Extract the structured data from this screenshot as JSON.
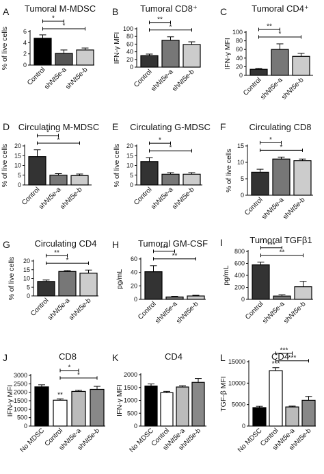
{
  "chart_data": [
    {
      "panel": "A",
      "type": "bar",
      "title": "Tumoral M-MDSC",
      "ylabel": "% of live cells",
      "ylim": [
        0,
        6
      ],
      "yticks": [
        0,
        2,
        4,
        6
      ],
      "categories": [
        "Control",
        "shNt5e-a",
        "shNt5e-b"
      ],
      "values": [
        4.8,
        2.1,
        2.7
      ],
      "errors": [
        0.6,
        0.6,
        0.35
      ],
      "colors": [
        "#000000",
        "#555555",
        "#cccccc"
      ],
      "significance": [
        {
          "from": 0,
          "to": 1,
          "label": "*"
        },
        {
          "from": 0,
          "to": 2,
          "label": "*"
        }
      ]
    },
    {
      "panel": "B",
      "type": "bar",
      "title": "Tumoral CD8⁺",
      "ylabel": "IFN-γ MFI",
      "ylim": [
        0,
        100
      ],
      "yticks": [
        0,
        20,
        40,
        60,
        80,
        100
      ],
      "categories": [
        "Control",
        "shNt5e-a",
        "shNt5e-b"
      ],
      "values": [
        30,
        70,
        59
      ],
      "errors": [
        4,
        9,
        7
      ],
      "colors": [
        "#333333",
        "#777777",
        "#cccccc"
      ],
      "significance": [
        {
          "from": 0,
          "to": 1,
          "label": "**"
        },
        {
          "from": 0,
          "to": 2,
          "label": "*"
        }
      ]
    },
    {
      "panel": "C",
      "type": "bar",
      "title": "Tumoral CD4⁺",
      "ylabel": "IFN-γ MFI",
      "ylim": [
        0,
        100
      ],
      "yticks": [
        0,
        20,
        40,
        60,
        80,
        100
      ],
      "categories": [
        "Control",
        "shNt5e-a",
        "shNt5e-b"
      ],
      "values": [
        14,
        60,
        44
      ],
      "errors": [
        2,
        13,
        7
      ],
      "colors": [
        "#333333",
        "#777777",
        "#cccccc"
      ],
      "significance": [
        {
          "from": 0,
          "to": 1,
          "label": "**"
        },
        {
          "from": 0,
          "to": 2,
          "label": "*"
        }
      ]
    },
    {
      "panel": "D",
      "type": "bar",
      "title": "Circulating M-MDSC",
      "ylabel": "% of live cells",
      "ylim": [
        0,
        20
      ],
      "yticks": [
        0,
        5,
        10,
        15,
        20
      ],
      "categories": [
        "Control",
        "shNt5e-a",
        "shNt5e-b"
      ],
      "values": [
        14.5,
        5,
        4.8
      ],
      "errors": [
        3.5,
        0.8,
        0.8
      ],
      "colors": [
        "#333333",
        "#777777",
        "#cccccc"
      ],
      "significance": [
        {
          "from": 0,
          "to": 1,
          "label": "*"
        },
        {
          "from": 0,
          "to": 2,
          "label": "*"
        }
      ]
    },
    {
      "panel": "E",
      "type": "bar",
      "title": "Circulating G-MDSC",
      "ylabel": "% of live cells",
      "ylim": [
        0,
        20
      ],
      "yticks": [
        0,
        5,
        10,
        15,
        20
      ],
      "categories": [
        "Control",
        "shNt5e-a",
        "shNt5e-b"
      ],
      "values": [
        12,
        5.5,
        5.5
      ],
      "errors": [
        2,
        0.8,
        0.8
      ],
      "colors": [
        "#333333",
        "#777777",
        "#cccccc"
      ],
      "significance": [
        {
          "from": 0,
          "to": 1,
          "label": "*"
        },
        {
          "from": 0,
          "to": 2,
          "label": "*"
        }
      ]
    },
    {
      "panel": "F",
      "type": "bar",
      "title": "Circulating CD8",
      "ylabel": "% of live cells",
      "ylim": [
        0,
        15
      ],
      "yticks": [
        0,
        5,
        10,
        15
      ],
      "categories": [
        "Control",
        "shNt5e-a",
        "shNt5e-b"
      ],
      "values": [
        7,
        11,
        10.5
      ],
      "errors": [
        0.9,
        0.6,
        0.5
      ],
      "colors": [
        "#333333",
        "#777777",
        "#cccccc"
      ],
      "significance": [
        {
          "from": 0,
          "to": 1,
          "label": "*"
        },
        {
          "from": 0,
          "to": 2,
          "label": "*"
        }
      ]
    },
    {
      "panel": "G",
      "type": "bar",
      "title": "Circulating CD4",
      "ylabel": "% of live cells",
      "ylim": [
        0,
        20
      ],
      "yticks": [
        0,
        5,
        10,
        15,
        20
      ],
      "categories": [
        "Control",
        "shNt5e-a",
        "shNt5e-b"
      ],
      "values": [
        8.3,
        14,
        13
      ],
      "errors": [
        0.8,
        0.5,
        1.8
      ],
      "colors": [
        "#333333",
        "#777777",
        "#cccccc"
      ],
      "significance": [
        {
          "from": 0,
          "to": 1,
          "label": "**"
        },
        {
          "from": 0,
          "to": 2,
          "label": "*"
        }
      ]
    },
    {
      "panel": "H",
      "type": "bar",
      "title": "Tumoral GM-CSF",
      "ylabel": "pg/mL",
      "ylim": [
        0,
        60
      ],
      "yticks": [
        0,
        20,
        40,
        60
      ],
      "categories": [
        "Control",
        "shNt5e-a",
        "shNt5e-b"
      ],
      "values": [
        41,
        3.5,
        5
      ],
      "errors": [
        9,
        1,
        1
      ],
      "colors": [
        "#333333",
        "#777777",
        "#cccccc"
      ],
      "significance": [
        {
          "from": 0,
          "to": 1,
          "label": "***"
        },
        {
          "from": 0,
          "to": 2,
          "label": "**"
        }
      ]
    },
    {
      "panel": "I",
      "type": "bar",
      "title": "Tumoral TGFβ1",
      "ylabel": "pg/mL",
      "ylim": [
        0,
        800
      ],
      "yticks": [
        0,
        200,
        400,
        600,
        800
      ],
      "categories": [
        "Control",
        "shNt5e-a",
        "shNt5e-b"
      ],
      "values": [
        575,
        55,
        210
      ],
      "errors": [
        45,
        20,
        90
      ],
      "colors": [
        "#333333",
        "#777777",
        "#cccccc"
      ],
      "significance": [
        {
          "from": 0,
          "to": 1,
          "label": "***"
        },
        {
          "from": 0,
          "to": 2,
          "label": "**"
        }
      ]
    },
    {
      "panel": "J",
      "type": "bar",
      "title": "CD8",
      "ylabel": "IFN-γ MFI",
      "ylim": [
        0,
        3000
      ],
      "yticks": [
        0,
        500,
        1000,
        1500,
        2000,
        2500,
        3000
      ],
      "categories": [
        "No MDSC",
        "Control",
        "shNt5e-a",
        "shNt5e-b"
      ],
      "values": [
        2320,
        1530,
        2050,
        2170
      ],
      "errors": [
        120,
        80,
        70,
        180
      ],
      "colors": [
        "#000000",
        "#ffffff",
        "#bbbbbb",
        "#888888"
      ],
      "bar_labels": [
        "",
        "**",
        "",
        ""
      ],
      "significance": [
        {
          "from": 1,
          "to": 2,
          "label": "*"
        },
        {
          "from": 1,
          "to": 3,
          "label": "*"
        }
      ]
    },
    {
      "panel": "K",
      "type": "bar",
      "title": "CD4",
      "ylabel": "IFN-γ MFI",
      "ylim": [
        0,
        2000
      ],
      "yticks": [
        0,
        500,
        1000,
        1500,
        2000
      ],
      "categories": [
        "No MDSC",
        "Control",
        "shNt5e-a",
        "shNt5e-b"
      ],
      "values": [
        1560,
        1300,
        1520,
        1700
      ],
      "errors": [
        80,
        50,
        50,
        150
      ],
      "colors": [
        "#000000",
        "#ffffff",
        "#bbbbbb",
        "#888888"
      ],
      "significance": []
    },
    {
      "panel": "L",
      "type": "bar",
      "title": "CD4",
      "ylabel": "TGF-β  MFI",
      "ylim": [
        0,
        15000
      ],
      "yticks": [
        0,
        5000,
        10000,
        15000
      ],
      "categories": [
        "No MDSC",
        "Control",
        "shNt5e-a",
        "shNt5e-b"
      ],
      "values": [
        4300,
        12900,
        4450,
        6000
      ],
      "errors": [
        300,
        700,
        200,
        900
      ],
      "colors": [
        "#000000",
        "#ffffff",
        "#bbbbbb",
        "#888888"
      ],
      "bar_labels": [
        "",
        "***",
        "",
        ""
      ],
      "significance": [
        {
          "from": 1,
          "to": 2,
          "label": "***"
        },
        {
          "from": 1,
          "to": 3,
          "label": "***"
        }
      ]
    }
  ]
}
